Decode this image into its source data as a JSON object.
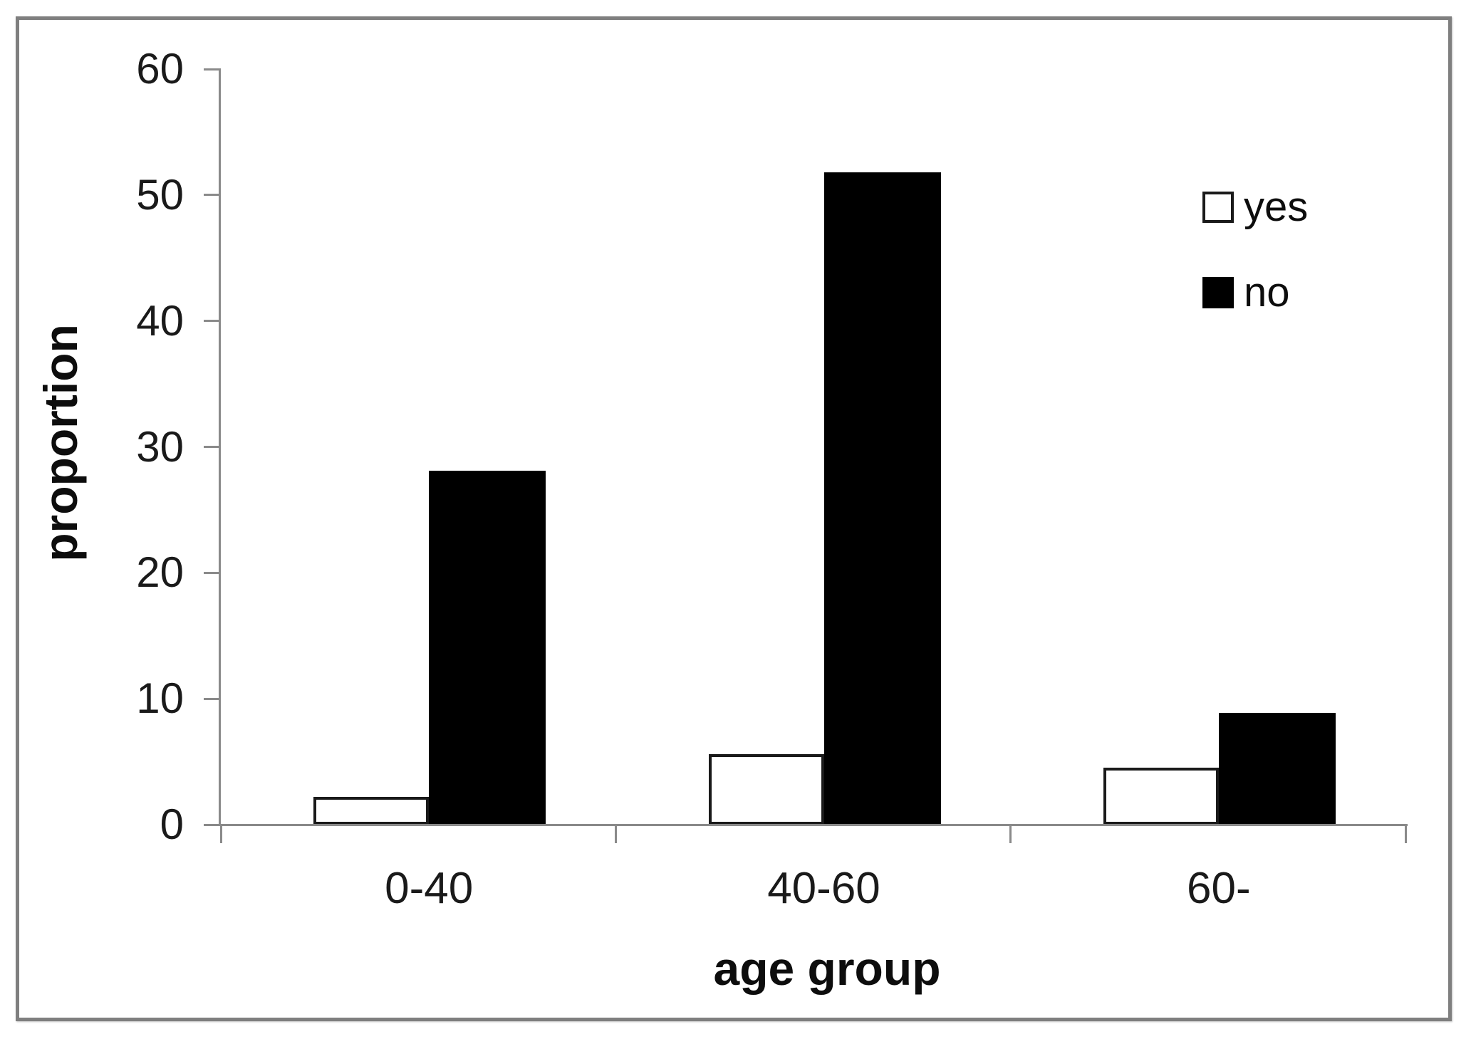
{
  "chart_data": {
    "type": "bar",
    "title": "",
    "categories": [
      "0-40",
      "40-60",
      "60-"
    ],
    "series": [
      {
        "name": "yes",
        "values": [
          2.2,
          5.6,
          4.5
        ],
        "fill": "#ffffff",
        "outline": "#1a1a1a"
      },
      {
        "name": "no",
        "values": [
          28.1,
          51.8,
          8.9
        ],
        "fill": "#000000",
        "outline": "#000000"
      }
    ],
    "xlabel": "age group",
    "ylabel": "proportion",
    "ylim": [
      0,
      60
    ],
    "y_ticks": [
      0,
      10,
      20,
      30,
      40,
      50,
      60
    ],
    "grid": false,
    "legend_position": "upper-right",
    "colors": {
      "axis": "#8a8a8a",
      "figure_border": "#7f7f7f",
      "text": "#1a1a1a",
      "bar_yes_fill": "#ffffff",
      "bar_no_fill": "#000000"
    }
  }
}
